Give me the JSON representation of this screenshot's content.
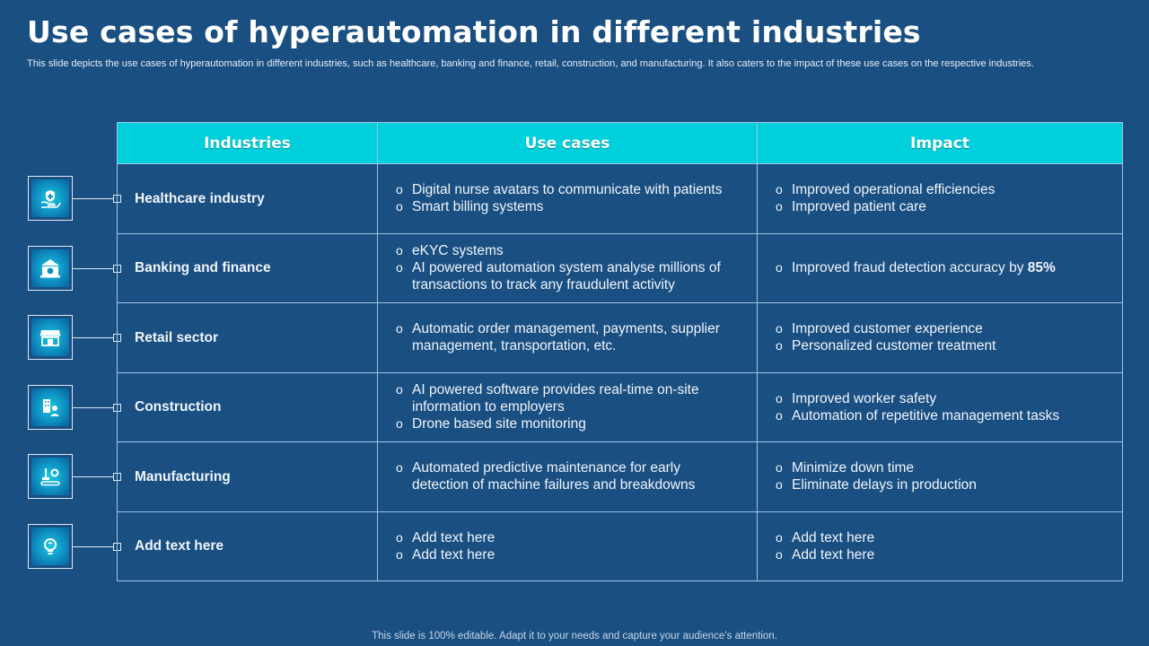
{
  "title": "Use cases of hyperautomation in different industries",
  "subtitle": "This slide depicts the use cases of hyperautomation in different industries, such as healthcare, banking and finance, retail, construction, and manufacturing. It also caters to the impact of these use cases on the respective industries.",
  "headers": {
    "industries": "Industries",
    "use_cases": "Use cases",
    "impact": "Impact"
  },
  "bullet": "o",
  "rows": [
    {
      "industry": "Healthcare industry",
      "icon": "healthcare-hand-icon",
      "use_cases": [
        "Digital nurse avatars to communicate with patients",
        "Smart billing systems"
      ],
      "impact": [
        "Improved operational efficiencies",
        "Improved patient care"
      ]
    },
    {
      "industry": "Banking and finance",
      "icon": "bank-icon",
      "use_cases": [
        "eKYC systems",
        "AI powered automation system analyse millions of transactions to track any fraudulent activity"
      ],
      "impact_text": "Improved fraud detection accuracy by ",
      "impact_strong": "85%"
    },
    {
      "industry": "Retail sector",
      "icon": "storefront-icon",
      "use_cases": [
        "Automatic order management, payments, supplier management, transportation, etc."
      ],
      "impact": [
        "Improved customer experience",
        "Personalized customer treatment"
      ]
    },
    {
      "industry": "Construction",
      "icon": "construction-building-icon",
      "use_cases": [
        "AI powered software provides real-time on-site information to employers",
        "Drone based site monitoring"
      ],
      "impact": [
        "Improved worker safety",
        "Automation of repetitive management tasks"
      ]
    },
    {
      "industry": "Manufacturing",
      "icon": "factory-conveyor-icon",
      "use_cases": [
        "Automated predictive maintenance for early detection of machine failures and breakdowns"
      ],
      "impact": [
        "Minimize down time",
        "Eliminate delays in production"
      ]
    },
    {
      "industry": "Add text here",
      "icon": "lightbulb-icon",
      "use_cases": [
        "Add text here",
        "Add text here"
      ],
      "impact": [
        "Add text here",
        "Add text here"
      ]
    }
  ],
  "footer": "This slide is 100% editable. Adapt it to your needs and capture your audience’s attention."
}
